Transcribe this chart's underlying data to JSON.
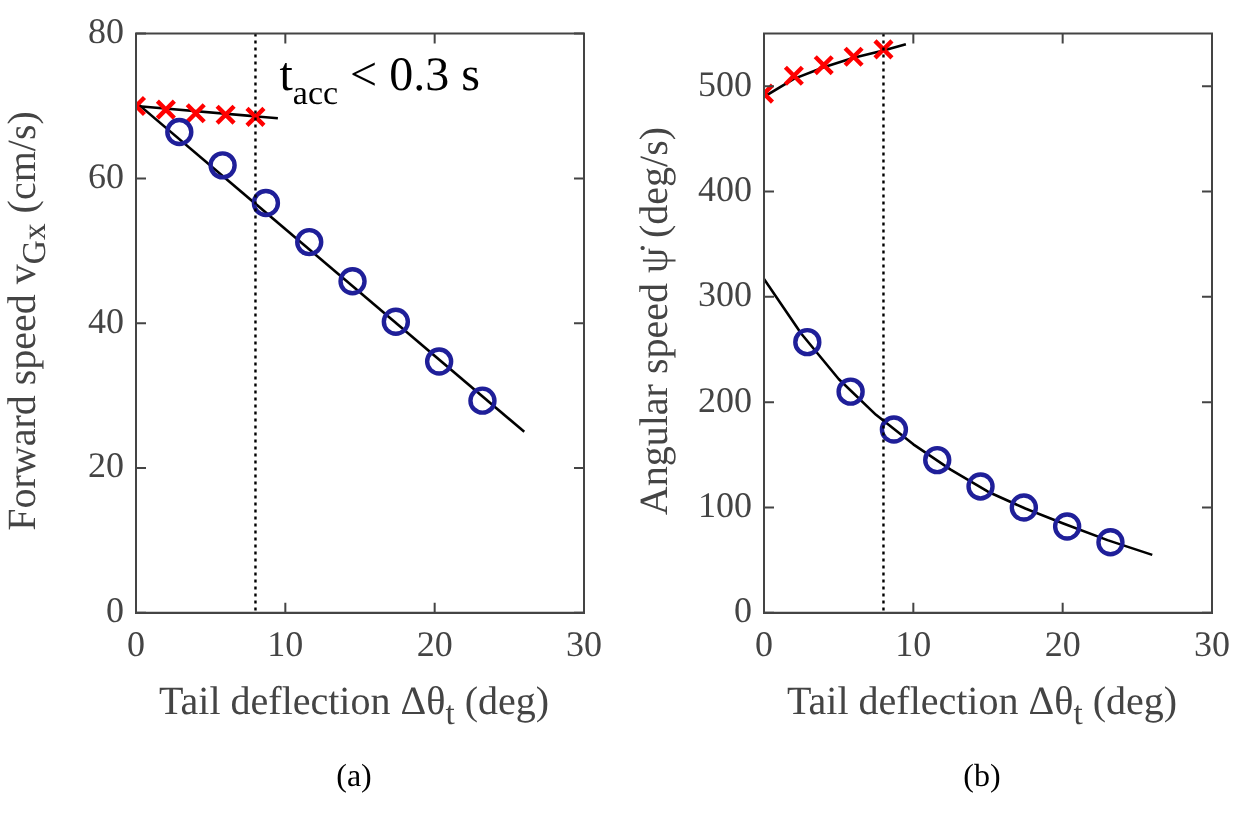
{
  "chart_data": [
    {
      "type": "scatter",
      "xlabel": "Tail deflection Δθ$_{t}$ (deg)",
      "ylabel": "Forward speed v$_{Gx}$ (cm/s)",
      "annotations": [
        "(a)"
      ],
      "xlim": [
        0,
        30
      ],
      "xticks": [
        0,
        10,
        20,
        30
      ],
      "ylim": [
        0,
        80
      ],
      "yticks": [
        0,
        20,
        40,
        60,
        80
      ],
      "grid": false,
      "legend": false,
      "ref_lines": [
        {
          "axis": "x",
          "value": 8,
          "label": "t$_{acc}$ < 0.3 s",
          "line_style": "dotted",
          "color": "#000000"
        }
      ],
      "series": [
        {
          "type": "line",
          "color": "#000000",
          "marker": "none",
          "x": [
            0,
            9.5
          ],
          "values": [
            70,
            68.3
          ]
        },
        {
          "type": "line",
          "color": "#000000",
          "marker": "none",
          "x": [
            0,
            26
          ],
          "values": [
            70.5,
            25
          ]
        },
        {
          "type": "scatter",
          "color": "#ff0000",
          "marker": "cross",
          "x": [
            0,
            2,
            4,
            6,
            8
          ],
          "values": [
            70,
            69.5,
            69,
            68.8,
            68.5
          ]
        },
        {
          "type": "scatter",
          "color": "#1f1f99",
          "marker": "circle",
          "x": [
            2.9,
            5.8,
            8.7,
            11.6,
            14.5,
            17.4,
            20.3,
            23.2
          ],
          "values": [
            66.4,
            61.8,
            56.6,
            51.2,
            45.8,
            40.2,
            34.7,
            29.3
          ]
        }
      ]
    },
    {
      "type": "scatter",
      "xlabel": "Tail deflection Δθ$_{t}$ (deg)",
      "ylabel": "Angular speed ψ̇ (deg/s)",
      "annotations": [
        "(b)"
      ],
      "xlim": [
        0,
        30
      ],
      "xticks": [
        0,
        10,
        20,
        30
      ],
      "ylim": [
        0,
        550
      ],
      "yticks": [
        0,
        100,
        200,
        300,
        400,
        500
      ],
      "grid": false,
      "legend": false,
      "ref_lines": [
        {
          "axis": "x",
          "value": 8,
          "line_style": "dotted",
          "color": "#000000"
        }
      ],
      "series": [
        {
          "type": "line",
          "color": "#000000",
          "marker": "none",
          "x": [
            0,
            2,
            4,
            6,
            8,
            9.5
          ],
          "values": [
            490,
            507,
            518,
            527,
            534,
            540
          ]
        },
        {
          "type": "line",
          "color": "#000000",
          "marker": "none",
          "x": [
            0,
            2.5,
            5,
            7.5,
            10,
            12.5,
            15,
            17.5,
            20,
            23,
            26
          ],
          "values": [
            317,
            265,
            222,
            188,
            160,
            136,
            115,
            99,
            85,
            69,
            55
          ]
        },
        {
          "type": "scatter",
          "color": "#ff0000",
          "marker": "cross",
          "x": [
            0,
            2,
            4,
            6,
            8
          ],
          "values": [
            493,
            510,
            520,
            528,
            535
          ]
        },
        {
          "type": "scatter",
          "color": "#1f1f99",
          "marker": "circle",
          "x": [
            2.9,
            5.8,
            8.7,
            11.6,
            14.5,
            17.4,
            20.3,
            23.2
          ],
          "values": [
            257,
            210,
            174,
            145,
            120,
            100,
            82,
            67
          ]
        }
      ]
    }
  ]
}
